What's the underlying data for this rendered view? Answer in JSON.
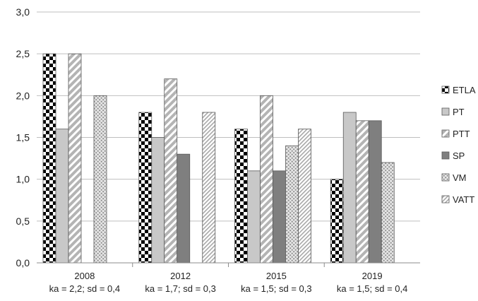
{
  "chart_data": {
    "type": "bar",
    "title": "",
    "xlabel": "",
    "ylabel": "",
    "ylim": [
      0,
      3
    ],
    "yticks": [
      0,
      0.5,
      1,
      1.5,
      2,
      2.5,
      3
    ],
    "ytick_labels": [
      "0,0",
      "0,5",
      "1,0",
      "1,5",
      "2,0",
      "2,5",
      "3,0"
    ],
    "grid": "horizontal",
    "legend_position": "right",
    "categories": [
      "2008",
      "2012",
      "2015",
      "2019"
    ],
    "category_sublabels": [
      "ka = 2,2; sd = 0,4",
      "ka = 1,7; sd = 0,3",
      "ka = 1,5; sd = 0,3",
      "ka = 1,5; sd = 0,4"
    ],
    "series": [
      {
        "name": "ETLA",
        "pattern": "checker",
        "color": "#000000",
        "values": [
          2.5,
          1.8,
          1.6,
          1.0
        ]
      },
      {
        "name": "PT",
        "pattern": "solid-light",
        "color": "#c8c8c8",
        "values": [
          1.6,
          1.5,
          1.1,
          1.8
        ]
      },
      {
        "name": "PTT",
        "pattern": "diagonal-light",
        "color": "#b4b4b4",
        "values": [
          2.5,
          2.2,
          2.0,
          1.7
        ]
      },
      {
        "name": "SP",
        "pattern": "solid-dark",
        "color": "#7f7f7f",
        "values": [
          null,
          1.3,
          1.1,
          1.7
        ]
      },
      {
        "name": "VM",
        "pattern": "crosshatch",
        "color": "#9a9a9a",
        "values": [
          2.0,
          null,
          1.4,
          1.2
        ]
      },
      {
        "name": "VATT",
        "pattern": "diagonal-fine",
        "color": "#a8a8a8",
        "values": [
          null,
          1.8,
          1.6,
          null
        ]
      }
    ]
  }
}
